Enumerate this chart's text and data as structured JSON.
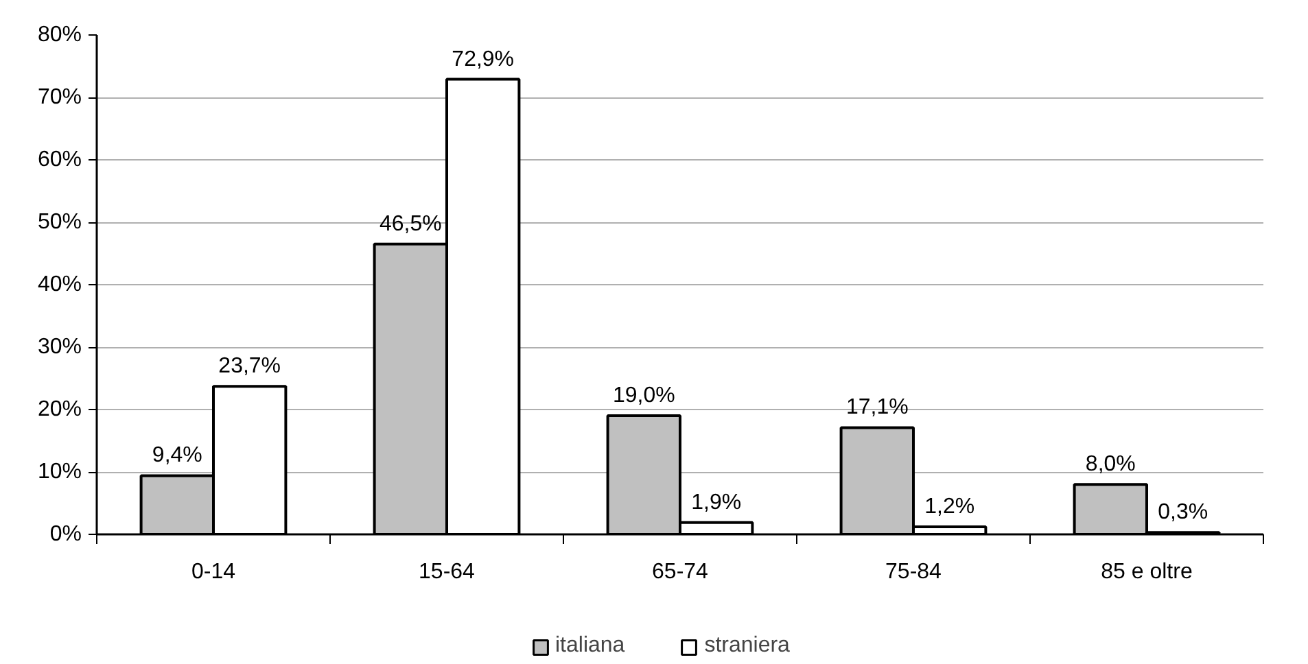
{
  "chart_data": {
    "type": "bar",
    "categories": [
      "0-14",
      "15-64",
      "65-74",
      "75-84",
      "85 e oltre"
    ],
    "series": [
      {
        "name": "italiana",
        "color": "#c0c0c0",
        "values": [
          9.4,
          46.5,
          19.0,
          17.1,
          8.0
        ],
        "value_labels": [
          "9,4%",
          "46,5%",
          "19,0%",
          "17,1%",
          "8,0%"
        ]
      },
      {
        "name": "straniera",
        "color": "#ffffff",
        "values": [
          23.7,
          72.9,
          1.9,
          1.2,
          0.3
        ],
        "value_labels": [
          "23,7%",
          "72,9%",
          "1,9%",
          "1,2%",
          "0,3%"
        ]
      }
    ],
    "ylim": [
      0,
      80
    ],
    "yticks": [
      {
        "value": 0,
        "label": "0%"
      },
      {
        "value": 10,
        "label": "10%"
      },
      {
        "value": 20,
        "label": "20%"
      },
      {
        "value": 30,
        "label": "30%"
      },
      {
        "value": 40,
        "label": "40%"
      },
      {
        "value": 50,
        "label": "50%"
      },
      {
        "value": 60,
        "label": "60%"
      },
      {
        "value": 70,
        "label": "70%"
      },
      {
        "value": 80,
        "label": "80%"
      }
    ],
    "grid": "y",
    "legend": "bottom"
  }
}
